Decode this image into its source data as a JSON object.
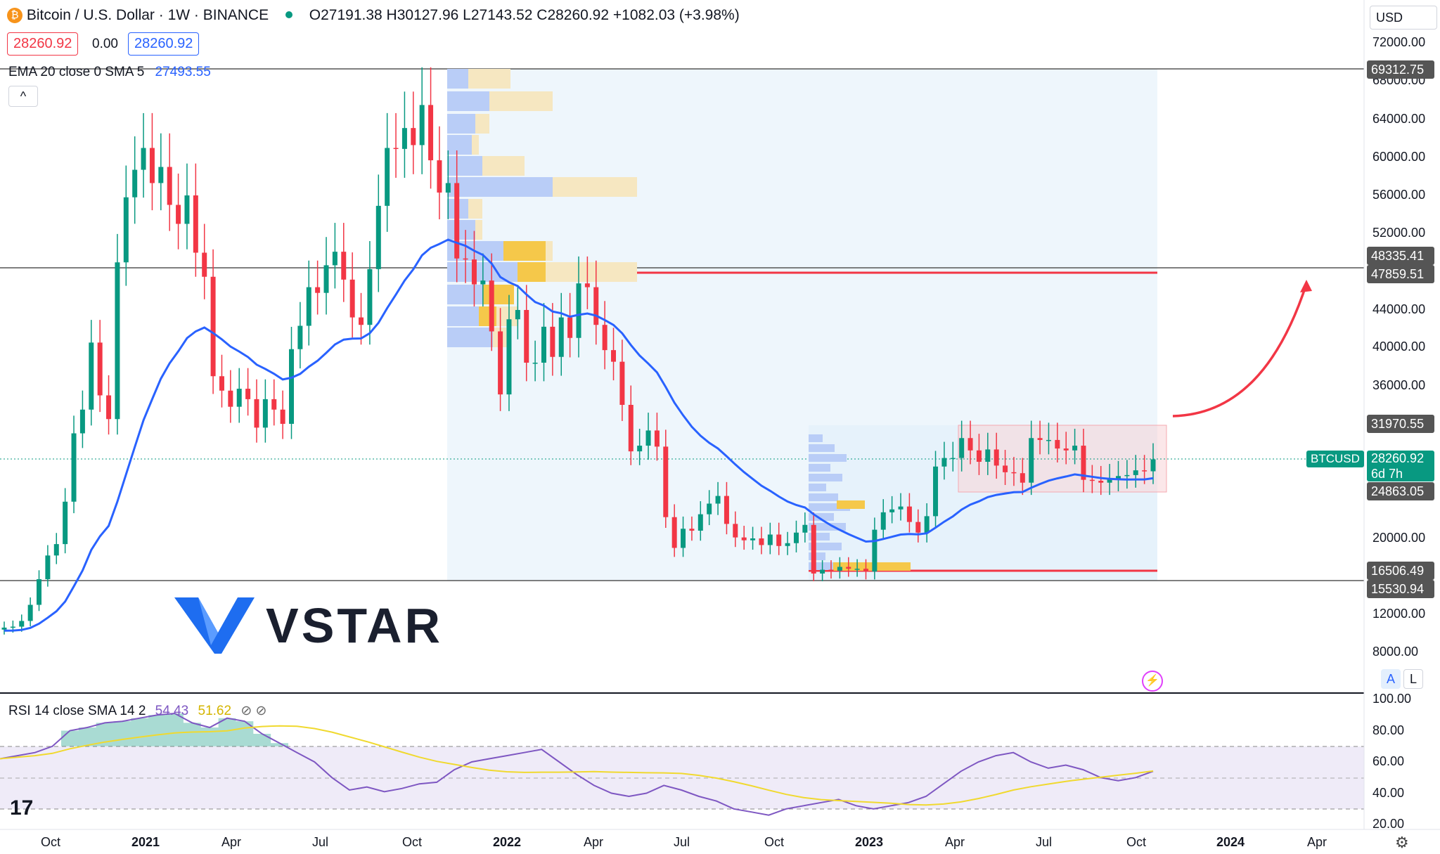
{
  "header": {
    "symbol": "Bitcoin / U.S. Dollar · 1W · BINANCE",
    "ohlc": {
      "o": "O27191.38",
      "h": "H30127.96",
      "l": "L27143.52",
      "c": "C28260.92",
      "chg": "+1082.03 (+3.98%)"
    },
    "bid": "28260.92",
    "spread": "0.00",
    "ask": "28260.92",
    "currency": "USD"
  },
  "indicators": {
    "ema": {
      "label": "EMA 20 close 0 SMA 5",
      "value": "27493.55"
    },
    "rsi": {
      "label": "RSI 14 close SMA 14 2",
      "value": "54.43",
      "sma": "51.62"
    }
  },
  "price_tags": {
    "top": "69312.75",
    "r1": "48335.41",
    "r2": "47859.51",
    "range_high": "31970.55",
    "symbol": "BTCUSD",
    "last": "28260.92",
    "countdown": "6d 7h",
    "range_low": "24863.05",
    "s1": "16506.49",
    "s2": "15530.94"
  },
  "watermark": "VSTAR",
  "buttons": {
    "auto": "A",
    "log": "L",
    "collapse": "^"
  },
  "colors": {
    "up": "#089981",
    "down": "#f23645",
    "ema": "#2962ff",
    "rsi": "#7e57c2",
    "rsi_sma": "#f0d92f",
    "level": "#f23645"
  },
  "chart_data": {
    "type": "candlestick",
    "title": "Bitcoin / U.S. Dollar · 1W · BINANCE",
    "y_ticks": [
      72000,
      68000,
      64000,
      60000,
      56000,
      52000,
      44000,
      40000,
      36000,
      20000,
      12000,
      8000
    ],
    "x_ticks": [
      "Oct",
      "2021",
      "Apr",
      "Jul",
      "Oct",
      "2022",
      "Apr",
      "Jul",
      "Oct",
      "2023",
      "Apr",
      "Jul",
      "Oct",
      "2024",
      "Apr"
    ],
    "rsi_ticks": [
      "100.00",
      "80.00",
      "60.00",
      "40.00",
      "20.00"
    ],
    "horizontal_levels": [
      69312.75,
      48335.41,
      47859.51,
      15530.94
    ],
    "support_resistance": [
      47859.51,
      16506.49
    ],
    "range_box": {
      "high": 31970.55,
      "low": 24863.05
    },
    "candles_weekly_close_approx": [
      10600,
      10700,
      11300,
      13000,
      15700,
      18200,
      19400,
      23800,
      31000,
      33500,
      40500,
      35000,
      32500,
      49000,
      55800,
      58700,
      61000,
      57300,
      59000,
      55000,
      53000,
      56000,
      50000,
      47500,
      37000,
      35500,
      33800,
      35700,
      34600,
      31600,
      34600,
      33500,
      32000,
      39800,
      42300,
      46400,
      45800,
      48700,
      50100,
      47200,
      43200,
      42400,
      48300,
      54900,
      61000,
      60900,
      63100,
      61300,
      65500,
      59700,
      56300,
      57300,
      49400,
      49300,
      46700,
      47100,
      41700,
      35100,
      43000,
      44000,
      38400,
      38400,
      42200,
      39000,
      43200,
      41000,
      46800,
      46400,
      42400,
      39700,
      38500,
      34000,
      29100,
      29700,
      31300,
      29600,
      22200,
      19000,
      21000,
      20800,
      22500,
      23600,
      24400,
      21500,
      20100,
      19800,
      20000,
      19300,
      20400,
      19200,
      19500,
      20600,
      21400,
      16300,
      16700,
      16600,
      17000,
      16800,
      16800,
      16500,
      20900,
      22700,
      23000,
      23300,
      21700,
      20600,
      22300,
      27500,
      28400,
      28400,
      30500,
      29200,
      28000,
      29300,
      27600,
      26900,
      26800,
      25800,
      30500,
      30300,
      30300,
      29400,
      29200,
      29700,
      26100,
      26000,
      25800,
      26200,
      26500,
      26600,
      27100,
      27000,
      28260
    ],
    "rsi_series_approx": [
      62,
      64,
      66,
      70,
      80,
      82,
      85,
      86,
      88,
      90,
      91,
      85,
      82,
      88,
      86,
      78,
      72,
      66,
      60,
      50,
      42,
      44,
      41,
      43,
      46,
      47,
      55,
      60,
      62,
      64,
      66,
      68,
      60,
      52,
      45,
      40,
      38,
      40,
      45,
      42,
      38,
      35,
      30,
      28,
      26,
      30,
      32,
      34,
      36,
      32,
      30,
      32,
      34,
      38,
      46,
      54,
      60,
      64,
      66,
      60,
      56,
      58,
      55,
      50,
      48,
      50,
      54
    ]
  }
}
